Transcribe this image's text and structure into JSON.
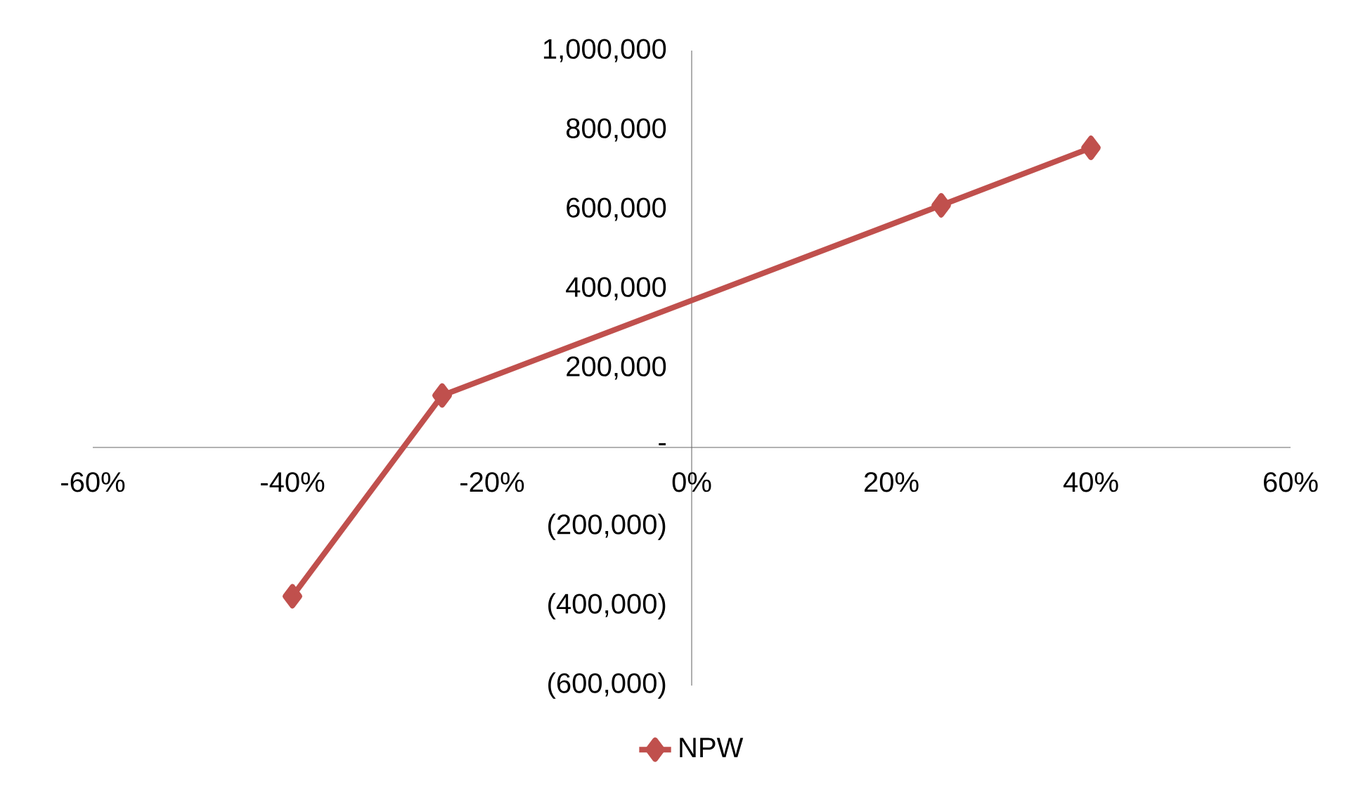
{
  "chart_data": {
    "type": "line",
    "x": [
      -40,
      -25,
      25,
      40
    ],
    "series": [
      {
        "name": "NPW",
        "color": "#c0504d",
        "values": [
          -375000,
          131000,
          610000,
          755000
        ]
      }
    ],
    "xlim": [
      -60,
      60
    ],
    "xticks": [
      {
        "value": -60,
        "label": "-60%"
      },
      {
        "value": -40,
        "label": "-40%"
      },
      {
        "value": -20,
        "label": "-20%"
      },
      {
        "value": 0,
        "label": "0%"
      },
      {
        "value": 20,
        "label": "20%"
      },
      {
        "value": 40,
        "label": "40%"
      },
      {
        "value": 60,
        "label": "60%"
      }
    ],
    "ylim": [
      -600000,
      1000000
    ],
    "yticks": [
      {
        "value": -600000,
        "label": "(600,000)"
      },
      {
        "value": -400000,
        "label": "(400,000)"
      },
      {
        "value": -200000,
        "label": "(200,000)"
      },
      {
        "value": 0,
        "label": "-"
      },
      {
        "value": 200000,
        "label": "200,000"
      },
      {
        "value": 400000,
        "label": "400,000"
      },
      {
        "value": 600000,
        "label": "600,000"
      },
      {
        "value": 800000,
        "label": "800,000"
      },
      {
        "value": 1000000,
        "label": "1,000,000"
      }
    ],
    "marker": "diamond",
    "line_style": "solid",
    "legend": "bottom",
    "grid": false
  }
}
